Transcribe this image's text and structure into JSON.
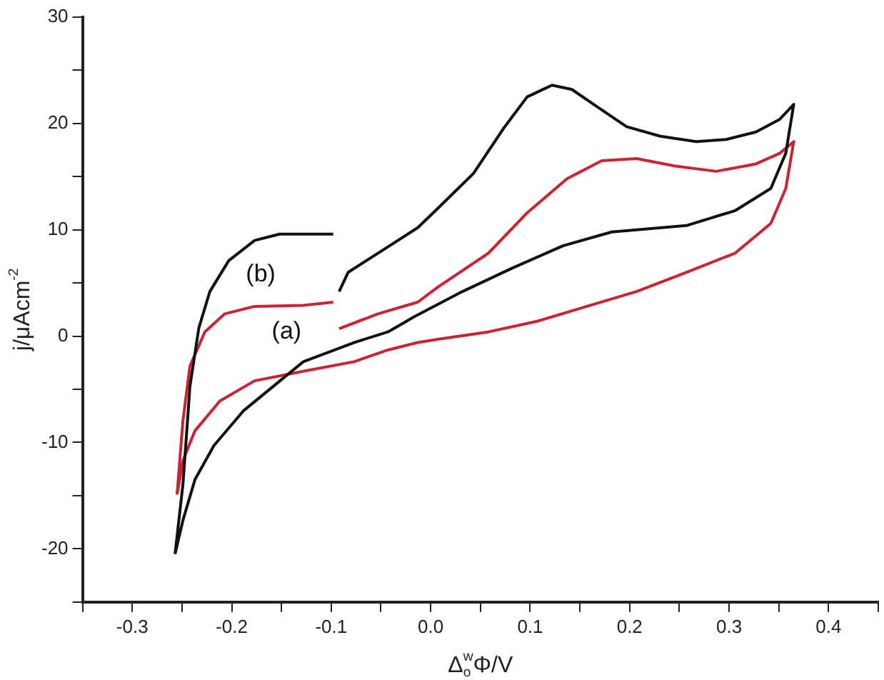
{
  "chart_data": {
    "type": "line",
    "xlabel": "Δ$^{w}$$_{o}$Φ/V",
    "ylabel": "j/μAcm$^{-2}$",
    "xlim": [
      -0.35,
      0.45
    ],
    "xticks": [
      {
        "value": -0.35,
        "label": null
      },
      -0.3,
      {
        "value": -0.25,
        "label": null
      },
      -0.2,
      {
        "value": -0.15,
        "label": null
      },
      -0.1,
      {
        "value": -0.05,
        "label": null
      },
      {
        "value": 0,
        "label": "0.0"
      },
      {
        "value": 0.05,
        "label": null
      },
      0.1,
      {
        "value": 0.15,
        "label": null
      },
      0.2,
      {
        "value": 0.25,
        "label": null
      },
      0.3,
      {
        "value": 0.35,
        "label": null
      },
      0.4,
      {
        "value": 0.45,
        "label": null
      }
    ],
    "ylim": [
      -25,
      30
    ],
    "yticks": [
      {
        "value": -25,
        "label": null
      },
      -20,
      {
        "value": -15,
        "label": null
      },
      -10,
      {
        "value": -5,
        "label": null
      },
      0,
      {
        "value": 5,
        "label": null
      },
      10,
      {
        "value": 15,
        "label": null
      },
      20,
      {
        "value": 25,
        "label": null
      },
      30
    ],
    "grid": false,
    "legend": false,
    "marker": "none",
    "line_style": "solid",
    "series": [
      {
        "name": "(b)",
        "color": "#111111",
        "x": [
          -0.257,
          -0.249,
          -0.242,
          -0.233,
          -0.222,
          -0.203,
          -0.177,
          -0.152,
          -0.098,
          -0.095,
          -0.092,
          -0.083,
          -0.043,
          -0.013,
          0.007,
          0.043,
          0.073,
          0.097,
          0.122,
          0.142,
          0.167,
          0.197,
          0.231,
          0.267,
          0.297,
          0.327,
          0.351,
          0.365,
          0.357,
          0.342,
          0.306,
          0.257,
          0.182,
          0.133,
          0.082,
          0.032,
          -0.017,
          -0.028,
          -0.043,
          -0.077,
          -0.128,
          -0.158,
          -0.188,
          -0.218,
          -0.237,
          -0.249,
          -0.257
        ],
        "values": [
          -20.5,
          -13.9,
          -4.7,
          0.8,
          4.2,
          7.1,
          9.0,
          9.6,
          9.6,
          null,
          4.2,
          6.0,
          8.4,
          10.2,
          12.0,
          15.3,
          19.5,
          22.5,
          23.6,
          23.2,
          21.6,
          19.7,
          18.8,
          18.3,
          18.5,
          19.2,
          20.4,
          21.8,
          17.2,
          13.9,
          11.8,
          10.4,
          9.8,
          8.5,
          6.4,
          4.2,
          1.8,
          1.2,
          0.4,
          -0.6,
          -2.4,
          -4.7,
          -7.0,
          -10.3,
          -13.5,
          -17.3,
          -20.5
        ]
      },
      {
        "name": "(a)",
        "color": "#cc2233",
        "x": [
          -0.255,
          -0.249,
          -0.242,
          -0.227,
          -0.207,
          -0.177,
          -0.128,
          -0.098,
          -0.095,
          -0.092,
          -0.053,
          -0.013,
          0.007,
          0.058,
          0.097,
          0.137,
          0.172,
          0.207,
          0.246,
          0.287,
          0.327,
          0.351,
          0.365,
          0.357,
          0.342,
          0.306,
          0.257,
          0.207,
          0.157,
          0.107,
          0.058,
          0.007,
          -0.013,
          -0.043,
          -0.077,
          -0.128,
          -0.177,
          -0.212,
          -0.237,
          -0.249,
          -0.255
        ],
        "values": [
          -14.9,
          -7.9,
          -2.8,
          0.4,
          2.1,
          2.8,
          2.9,
          3.2,
          null,
          0.7,
          2.1,
          3.2,
          4.6,
          7.8,
          11.6,
          14.8,
          16.5,
          16.7,
          16.0,
          15.5,
          16.2,
          17.2,
          18.3,
          13.9,
          10.6,
          7.8,
          6.0,
          4.2,
          2.8,
          1.4,
          0.4,
          -0.3,
          -0.6,
          -1.3,
          -2.4,
          -3.3,
          -4.2,
          -6.1,
          -8.9,
          -11.7,
          -14.9
        ]
      }
    ]
  }
}
